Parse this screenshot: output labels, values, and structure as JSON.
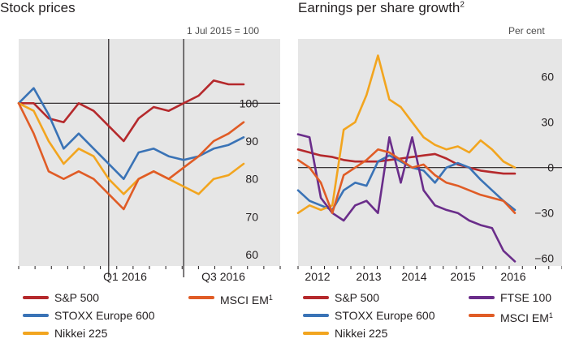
{
  "left": {
    "title": "Stock prices",
    "unit_note": "1 Jul 2015 = 100"
  },
  "right": {
    "title": "Earnings per share growth",
    "title_note": "2",
    "unit_note": "Per cent"
  },
  "colors": {
    "sp500": "#b5292c",
    "stoxx": "#3a73b6",
    "nikkei": "#f2a51f",
    "ftse": "#6a2d8a",
    "msci": "#e05c26",
    "background": "#e6e6e6"
  },
  "chart_data": [
    {
      "type": "line",
      "title": "Stock prices",
      "unit": "1 Jul 2015 = 100",
      "x": [
        "2015-07",
        "2015-08",
        "2015-09",
        "2015-10",
        "2015-11",
        "2015-12",
        "2016-01",
        "2016-02",
        "2016-03",
        "2016-04",
        "2016-05",
        "2016-06",
        "2016-07",
        "2016-08",
        "2016-09",
        "2016-10"
      ],
      "ylim": [
        57,
        117
      ],
      "yticks": [
        60,
        70,
        80,
        90,
        100
      ],
      "xtick_labels": [
        "Q1 2016",
        "Q3 2016"
      ],
      "reference_line": 100,
      "vertical_markers": [
        "2016-01",
        "2016-06"
      ],
      "series": [
        {
          "name": "S&P 500",
          "key": "sp500",
          "values": [
            100,
            100,
            96,
            95,
            100,
            98,
            94,
            90,
            96,
            99,
            98,
            100,
            102,
            106,
            105,
            105
          ]
        },
        {
          "name": "STOXX Europe 600",
          "key": "stoxx",
          "values": [
            100,
            104,
            97,
            88,
            92,
            88,
            84,
            80,
            87,
            88,
            86,
            85,
            86,
            88,
            89,
            91
          ]
        },
        {
          "name": "Nikkei 225",
          "key": "nikkei",
          "values": [
            100,
            98,
            90,
            84,
            88,
            86,
            80,
            76,
            80,
            82,
            80,
            78,
            76,
            80,
            81,
            84
          ]
        },
        {
          "name": "MSCI EM",
          "name_note": "1",
          "key": "msci",
          "values": [
            100,
            92,
            82,
            80,
            82,
            80,
            76,
            72,
            80,
            82,
            80,
            83,
            86,
            90,
            92,
            95
          ]
        }
      ]
    },
    {
      "type": "line",
      "title": "Earnings per share growth",
      "title_note": "2",
      "unit": "Per cent",
      "x": [
        "2011Q4",
        "2012Q1",
        "2012Q2",
        "2012Q3",
        "2012Q4",
        "2013Q1",
        "2013Q2",
        "2013Q3",
        "2013Q4",
        "2014Q1",
        "2014Q2",
        "2014Q3",
        "2014Q4",
        "2015Q1",
        "2015Q2",
        "2015Q3",
        "2015Q4",
        "2016Q1",
        "2016Q2",
        "2016Q3"
      ],
      "ylim": [
        -65,
        85
      ],
      "yticks": [
        -60,
        -30,
        0,
        30,
        60
      ],
      "xtick_labels": [
        "2012",
        "2013",
        "2014",
        "2015",
        "2016"
      ],
      "reference_line": 0,
      "series": [
        {
          "name": "S&P 500",
          "key": "sp500",
          "values": [
            12,
            10,
            8,
            7,
            5,
            4,
            4,
            4,
            5,
            6,
            7,
            8,
            9,
            6,
            2,
            0,
            -2,
            -3,
            -4,
            -4
          ]
        },
        {
          "name": "STOXX Europe 600",
          "key": "stoxx",
          "values": [
            -15,
            -22,
            -25,
            -28,
            -15,
            -10,
            -12,
            4,
            8,
            4,
            0,
            -2,
            -10,
            0,
            3,
            0,
            -8,
            -15,
            -22,
            -28
          ]
        },
        {
          "name": "Nikkei 225",
          "key": "nikkei",
          "values": [
            -30,
            -25,
            -28,
            -25,
            25,
            30,
            48,
            74,
            45,
            40,
            30,
            20,
            15,
            12,
            14,
            10,
            18,
            12,
            4,
            0
          ]
        },
        {
          "name": "FTSE 100",
          "key": "ftse",
          "values": [
            22,
            20,
            -20,
            -30,
            -35,
            -25,
            -22,
            -30,
            20,
            -10,
            20,
            -15,
            -25,
            -28,
            -30,
            -35,
            -38,
            -40,
            -55,
            -62
          ]
        },
        {
          "name": "MSCI EM",
          "name_note": "1",
          "key": "msci",
          "values": [
            5,
            0,
            -10,
            -30,
            -5,
            0,
            5,
            12,
            10,
            5,
            0,
            2,
            -5,
            -10,
            -12,
            -15,
            -18,
            -20,
            -22,
            -30
          ]
        }
      ]
    }
  ]
}
